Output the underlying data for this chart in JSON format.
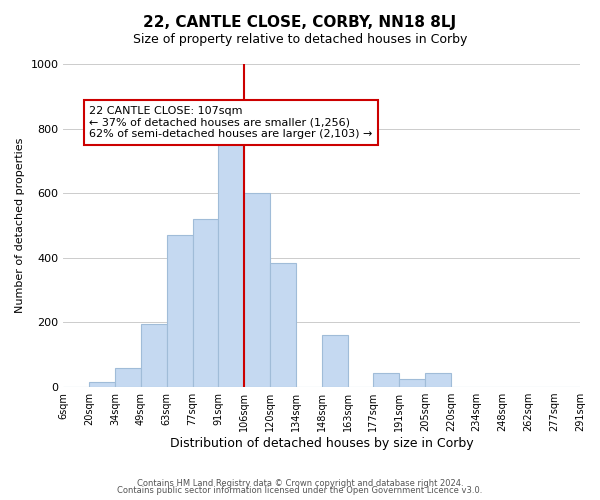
{
  "title": "22, CANTLE CLOSE, CORBY, NN18 8LJ",
  "subtitle": "Size of property relative to detached houses in Corby",
  "xlabel": "Distribution of detached houses by size in Corby",
  "ylabel": "Number of detached properties",
  "bin_labels": [
    "6sqm",
    "20sqm",
    "34sqm",
    "49sqm",
    "63sqm",
    "77sqm",
    "91sqm",
    "106sqm",
    "120sqm",
    "134sqm",
    "148sqm",
    "163sqm",
    "177sqm",
    "191sqm",
    "205sqm",
    "220sqm",
    "234sqm",
    "248sqm",
    "262sqm",
    "277sqm",
    "291sqm"
  ],
  "bar_heights": [
    0,
    15,
    60,
    195,
    470,
    520,
    760,
    600,
    385,
    0,
    160,
    0,
    45,
    25,
    45,
    0,
    0,
    0,
    0,
    0
  ],
  "bar_color": "#c5d9f1",
  "bar_edge_color": "#a0bcd8",
  "vline_x": 7,
  "vline_color": "#cc0000",
  "annotation_text": "22 CANTLE CLOSE: 107sqm\n← 37% of detached houses are smaller (1,256)\n62% of semi-detached houses are larger (2,103) →",
  "annotation_box_color": "#ffffff",
  "annotation_box_edge_color": "#cc0000",
  "ylim": [
    0,
    1000
  ],
  "footer_line1": "Contains HM Land Registry data © Crown copyright and database right 2024.",
  "footer_line2": "Contains public sector information licensed under the Open Government Licence v3.0.",
  "background_color": "#ffffff",
  "grid_color": "#cccccc"
}
